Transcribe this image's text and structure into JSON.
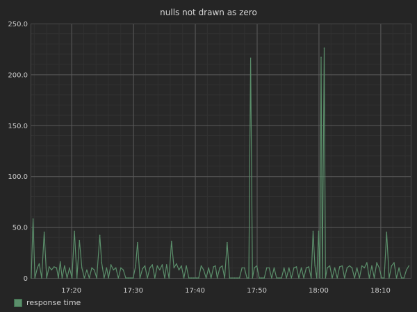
{
  "chart_data": {
    "type": "line",
    "title": "nulls not drawn as zero",
    "xlabel": "",
    "ylabel": "",
    "ylim": [
      0,
      250
    ],
    "y_ticks": [
      0,
      50,
      100,
      150,
      200,
      250
    ],
    "y_tick_labels": [
      "0",
      "50.0",
      "100.0",
      "150.0",
      "200.0",
      "250.0"
    ],
    "x_tick_labels": [
      "17:20",
      "17:30",
      "17:40",
      "17:50",
      "18:00",
      "18:10"
    ],
    "x_range_minutes": [
      "17:13.4",
      "18:14.9"
    ],
    "grid": true,
    "legend_position": "bottom-left",
    "colors": {
      "background": "#252525",
      "grid": "#5a5a5a",
      "series": "#5b8f6b"
    },
    "series": [
      {
        "name": "response time",
        "points": [
          [
            "17:13.5",
            0
          ],
          [
            "17:13.8",
            58
          ],
          [
            "17:14.1",
            0
          ],
          [
            "17:14.5",
            10
          ],
          [
            "17:14.8",
            14
          ],
          [
            "17:15.2",
            0
          ],
          [
            "17:15.6",
            45
          ],
          [
            "17:16.0",
            0
          ],
          [
            "17:16.4",
            11
          ],
          [
            "17:16.8",
            8
          ],
          [
            "17:17.2",
            11
          ],
          [
            "17:17.6",
            10
          ],
          [
            "17:17.9",
            0
          ],
          [
            "17:18.2",
            16
          ],
          [
            "17:18.5",
            0
          ],
          [
            "17:18.9",
            12
          ],
          [
            "17:19.3",
            0
          ],
          [
            "17:19.7",
            10
          ],
          [
            "17:20.1",
            0
          ],
          [
            "17:20.5",
            46
          ],
          [
            "17:20.9",
            0
          ],
          [
            "17:21.3",
            37
          ],
          [
            "17:21.7",
            10
          ],
          [
            "17:22.1",
            0
          ],
          [
            "17:22.5",
            8
          ],
          [
            "17:22.9",
            0
          ],
          [
            "17:23.3",
            10
          ],
          [
            "17:23.7",
            8
          ],
          [
            "17:24.1",
            0
          ],
          [
            "17:24.6",
            42
          ],
          [
            "17:24.9",
            15
          ],
          [
            "17:25.3",
            0
          ],
          [
            "17:25.7",
            10
          ],
          [
            "17:26.0",
            0
          ],
          [
            "17:26.4",
            13
          ],
          [
            "17:26.8",
            8
          ],
          [
            "17:27.2",
            10
          ],
          [
            "17:27.6",
            0
          ],
          [
            "17:28.0",
            10
          ],
          [
            "17:28.4",
            8
          ],
          [
            "17:28.8",
            0
          ],
          [
            "17:29.2",
            0
          ],
          [
            "17:29.6",
            0
          ],
          [
            "17:30.0",
            0
          ],
          [
            "17:30.4",
            12
          ],
          [
            "17:30.7",
            35
          ],
          [
            "17:31.1",
            0
          ],
          [
            "17:31.5",
            9
          ],
          [
            "17:31.9",
            12
          ],
          [
            "17:32.3",
            0
          ],
          [
            "17:32.7",
            10
          ],
          [
            "17:33.1",
            13
          ],
          [
            "17:33.5",
            0
          ],
          [
            "17:33.9",
            12
          ],
          [
            "17:34.3",
            8
          ],
          [
            "17:34.7",
            13
          ],
          [
            "17:35.1",
            0
          ],
          [
            "17:35.4",
            13
          ],
          [
            "17:35.8",
            0
          ],
          [
            "17:36.2",
            36
          ],
          [
            "17:36.6",
            10
          ],
          [
            "17:37.0",
            14
          ],
          [
            "17:37.4",
            8
          ],
          [
            "17:37.8",
            12
          ],
          [
            "17:38.2",
            0
          ],
          [
            "17:38.6",
            12
          ],
          [
            "17:39.0",
            0
          ],
          [
            "17:39.4",
            0
          ],
          [
            "17:39.8",
            0
          ],
          [
            "17:40.2",
            0
          ],
          [
            "17:40.6",
            0
          ],
          [
            "17:41.0",
            12
          ],
          [
            "17:41.4",
            8
          ],
          [
            "17:41.8",
            0
          ],
          [
            "17:42.2",
            10
          ],
          [
            "17:42.6",
            0
          ],
          [
            "17:43.0",
            11
          ],
          [
            "17:43.3",
            12
          ],
          [
            "17:43.6",
            0
          ],
          [
            "17:44.0",
            10
          ],
          [
            "17:44.4",
            12
          ],
          [
            "17:44.8",
            0
          ],
          [
            "17:45.2",
            35
          ],
          [
            "17:45.6",
            0
          ],
          [
            "17:46.0",
            0
          ],
          [
            "17:46.4",
            0
          ],
          [
            "17:46.8",
            0
          ],
          [
            "17:47.2",
            0
          ],
          [
            "17:47.6",
            10
          ],
          [
            "17:48.0",
            10
          ],
          [
            "17:48.4",
            0
          ],
          [
            "17:48.7",
            0
          ],
          [
            "17:49.0",
            216
          ],
          [
            "17:49.3",
            0
          ],
          [
            "17:49.6",
            10
          ],
          [
            "17:50.0",
            12
          ],
          [
            "17:50.4",
            0
          ],
          [
            "17:50.8",
            0
          ],
          [
            "17:51.2",
            0
          ],
          [
            "17:51.6",
            10
          ],
          [
            "17:52.0",
            10
          ],
          [
            "17:52.4",
            0
          ],
          [
            "17:52.8",
            10
          ],
          [
            "17:53.2",
            0
          ],
          [
            "17:53.6",
            0
          ],
          [
            "17:54.0",
            0
          ],
          [
            "17:54.4",
            10
          ],
          [
            "17:54.8",
            0
          ],
          [
            "17:55.2",
            10
          ],
          [
            "17:55.6",
            0
          ],
          [
            "17:56.0",
            10
          ],
          [
            "17:56.4",
            11
          ],
          [
            "17:56.8",
            0
          ],
          [
            "17:57.2",
            10
          ],
          [
            "17:57.6",
            0
          ],
          [
            "17:58.0",
            10
          ],
          [
            "17:58.4",
            11
          ],
          [
            "17:58.8",
            0
          ],
          [
            "17:59.1",
            46
          ],
          [
            "17:59.4",
            12
          ],
          [
            "17:59.7",
            0
          ],
          [
            "18:00.0",
            46
          ],
          [
            "18:00.2",
            0
          ],
          [
            "18:00.4",
            217
          ],
          [
            "18:00.6",
            0
          ],
          [
            "18:00.9",
            226
          ],
          [
            "18:01.1",
            0
          ],
          [
            "18:01.4",
            10
          ],
          [
            "18:01.8",
            12
          ],
          [
            "18:02.2",
            0
          ],
          [
            "18:02.6",
            10
          ],
          [
            "18:03.0",
            0
          ],
          [
            "18:03.4",
            11
          ],
          [
            "18:03.8",
            12
          ],
          [
            "18:04.2",
            0
          ],
          [
            "18:04.6",
            10
          ],
          [
            "18:05.0",
            12
          ],
          [
            "18:05.4",
            10
          ],
          [
            "18:05.8",
            0
          ],
          [
            "18:06.2",
            10
          ],
          [
            "18:06.6",
            0
          ],
          [
            "18:07.0",
            12
          ],
          [
            "18:07.4",
            10
          ],
          [
            "18:07.8",
            15
          ],
          [
            "18:08.2",
            0
          ],
          [
            "18:08.6",
            12
          ],
          [
            "18:09.0",
            0
          ],
          [
            "18:09.4",
            15
          ],
          [
            "18:09.8",
            10
          ],
          [
            "18:10.2",
            0
          ],
          [
            "18:10.6",
            0
          ],
          [
            "18:11.0",
            45
          ],
          [
            "18:11.4",
            0
          ],
          [
            "18:11.8",
            12
          ],
          [
            "18:12.2",
            15
          ],
          [
            "18:12.6",
            0
          ],
          [
            "18:13.0",
            10
          ],
          [
            "18:13.4",
            0
          ],
          [
            "18:13.8",
            0
          ],
          [
            "18:14.2",
            8
          ],
          [
            "18:14.6",
            12
          ]
        ]
      }
    ]
  }
}
